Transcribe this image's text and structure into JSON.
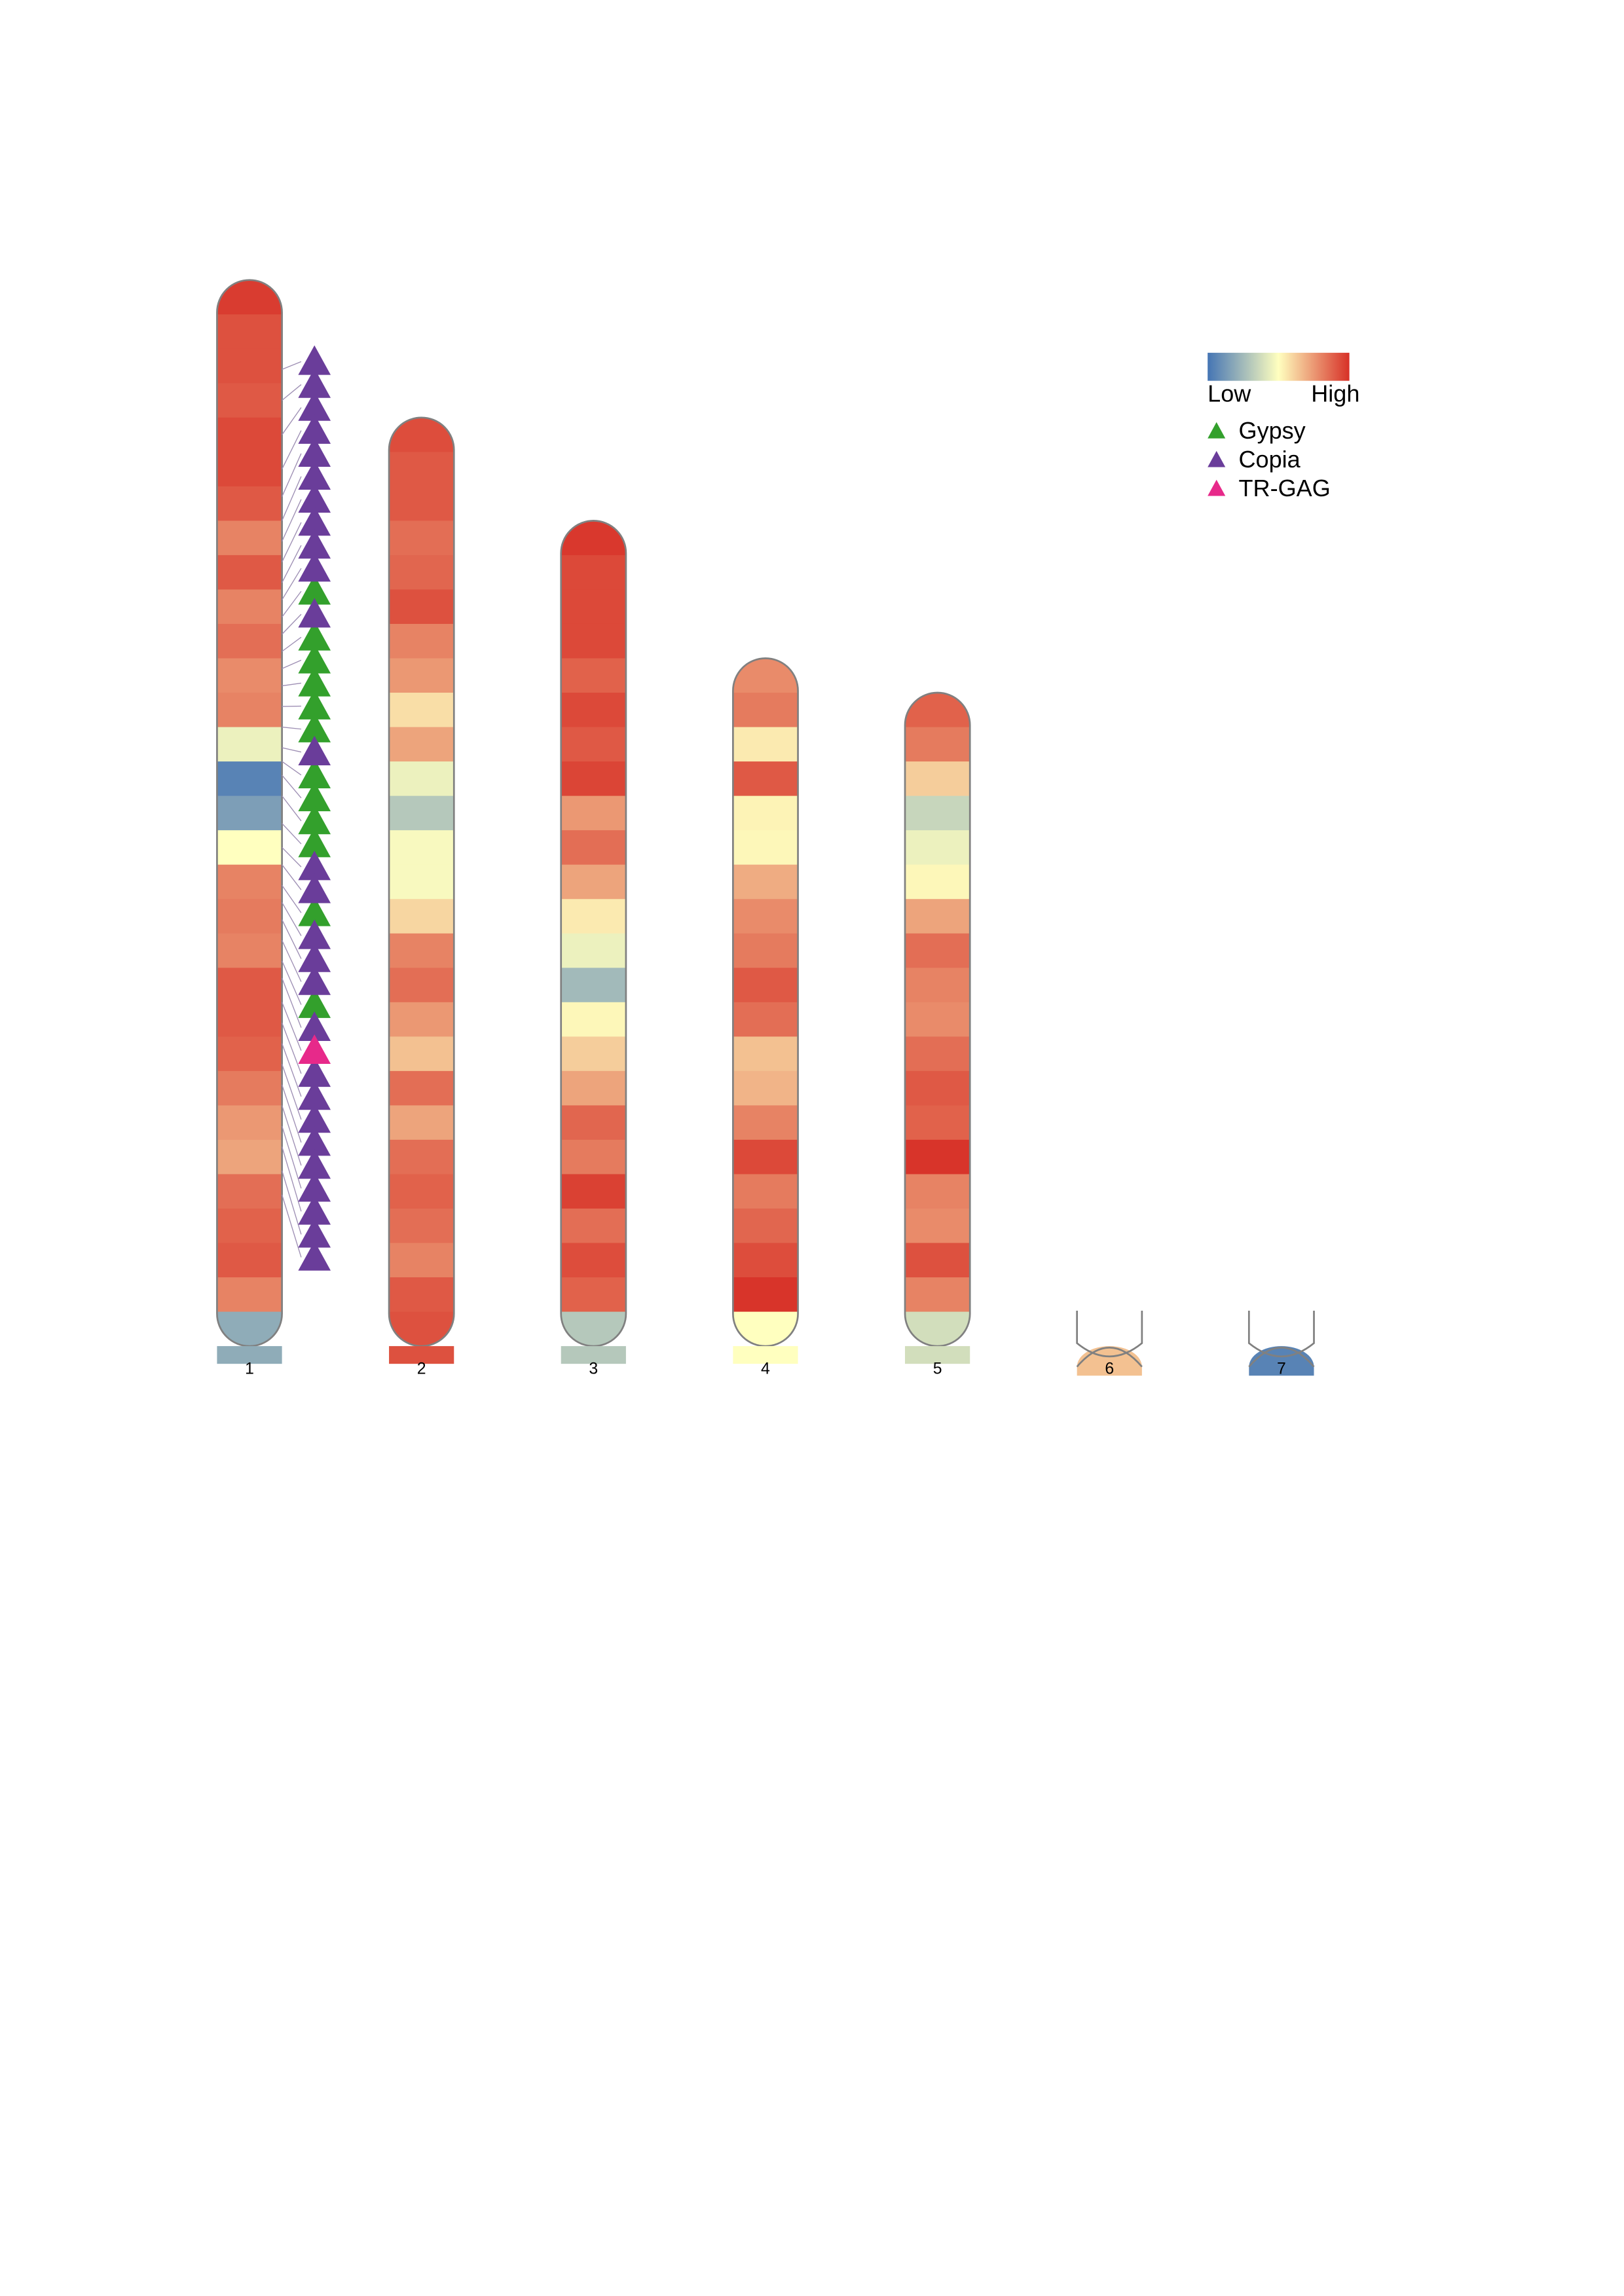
{
  "chart_data": {
    "type": "ideogram",
    "color_scale": {
      "low_label": "Low",
      "high_label": "High",
      "colors": [
        "#4575b4",
        "#ffffbf",
        "#d73027"
      ]
    },
    "chromosomes": [
      {
        "name": "1",
        "values": [
          0.97,
          0.92,
          0.92,
          0.9,
          0.94,
          0.94,
          0.9,
          0.8,
          0.9,
          0.8,
          0.85,
          0.78,
          0.8,
          0.45,
          0.05,
          0.15,
          0.5,
          0.8,
          0.82,
          0.8,
          0.9,
          0.9,
          0.88,
          0.82,
          0.75,
          0.72,
          0.85,
          0.88,
          0.9,
          0.8,
          0.2
        ]
      },
      {
        "name": "2",
        "values": [
          0.93,
          0.9,
          0.9,
          0.85,
          0.87,
          0.92,
          0.8,
          0.75,
          0.58,
          0.72,
          0.45,
          0.3,
          0.48,
          0.48,
          0.6,
          0.8,
          0.85,
          0.75,
          0.65,
          0.85,
          0.72,
          0.85,
          0.88,
          0.85,
          0.8,
          0.9,
          0.92
        ]
      },
      {
        "name": "3",
        "values": [
          0.98,
          0.94,
          0.94,
          0.94,
          0.88,
          0.94,
          0.9,
          0.95,
          0.75,
          0.85,
          0.72,
          0.55,
          0.45,
          0.25,
          0.52,
          0.62,
          0.72,
          0.87,
          0.82,
          0.96,
          0.85,
          0.93,
          0.88,
          0.3
        ]
      },
      {
        "name": "4",
        "values": [
          0.78,
          0.82,
          0.55,
          0.9,
          0.53,
          0.52,
          0.7,
          0.78,
          0.82,
          0.9,
          0.85,
          0.65,
          0.68,
          0.8,
          0.94,
          0.82,
          0.87,
          0.93,
          0.99,
          0.5
        ]
      },
      {
        "name": "5",
        "values": [
          0.88,
          0.82,
          0.62,
          0.35,
          0.45,
          0.52,
          0.72,
          0.85,
          0.8,
          0.78,
          0.85,
          0.9,
          0.88,
          0.99,
          0.8,
          0.78,
          0.92,
          0.8,
          0.38
        ]
      },
      {
        "name": "6",
        "values": [
          0.65
        ]
      },
      {
        "name": "7",
        "values": [
          0.05
        ]
      }
    ],
    "series": [
      {
        "name": "Gypsy",
        "color": "#33a02c",
        "positions": [
          9.8,
          10.8,
          11.3,
          11.8,
          12.4,
          13.0,
          14.0,
          14.4,
          15.0,
          15.8,
          17.6,
          19.8
        ]
      },
      {
        "name": "Copia",
        "color": "#6a3d9a",
        "positions": [
          2.6,
          3.5,
          4.5,
          5.5,
          6.3,
          7.0,
          7.6,
          8.2,
          8.8,
          9.3,
          10.3,
          13.6,
          16.5,
          17.0,
          18.1,
          18.6,
          19.2,
          20.3,
          21.6,
          22.2,
          22.8,
          23.4,
          24.0,
          24.6,
          25.2,
          25.9,
          26.6
        ]
      },
      {
        "name": "TR-GAG",
        "color": "#e7298a",
        "positions": [
          21.0
        ]
      }
    ]
  }
}
